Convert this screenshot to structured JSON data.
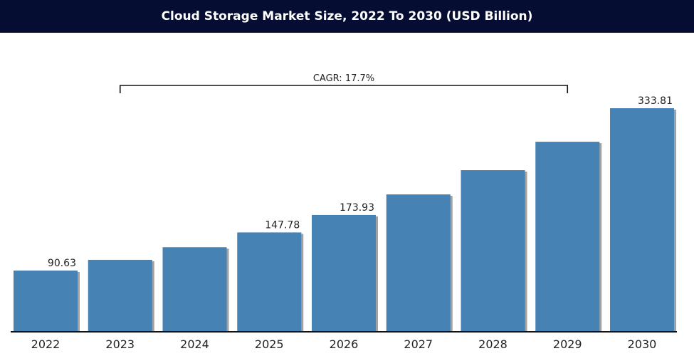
{
  "header": {
    "title": "Cloud Storage Market Size, 2022 To 2030 (USD Billion)"
  },
  "colors": {
    "bar": "#4682b4",
    "header_bg": "#050d33",
    "axis": "#111111"
  },
  "chart_data": {
    "type": "bar",
    "title": "Cloud Storage Market Size, 2022 To 2030 (USD Billion)",
    "categories": [
      "2022",
      "2023",
      "2024",
      "2025",
      "2026",
      "2027",
      "2028",
      "2029",
      "2030"
    ],
    "values": [
      90.63,
      106.7,
      125.6,
      147.78,
      173.93,
      204.7,
      241.0,
      283.6,
      333.81
    ],
    "labeled_values": [
      "90.63",
      "",
      "",
      "147.78",
      "173.93",
      "",
      "",
      "",
      "333.81"
    ],
    "ylim": [
      0,
      333.81
    ],
    "xlabel": "",
    "ylabel": "",
    "grid": false,
    "annotation": {
      "text": "CAGR: 17.7%",
      "from_category": "2023",
      "to_category": "2029"
    }
  }
}
